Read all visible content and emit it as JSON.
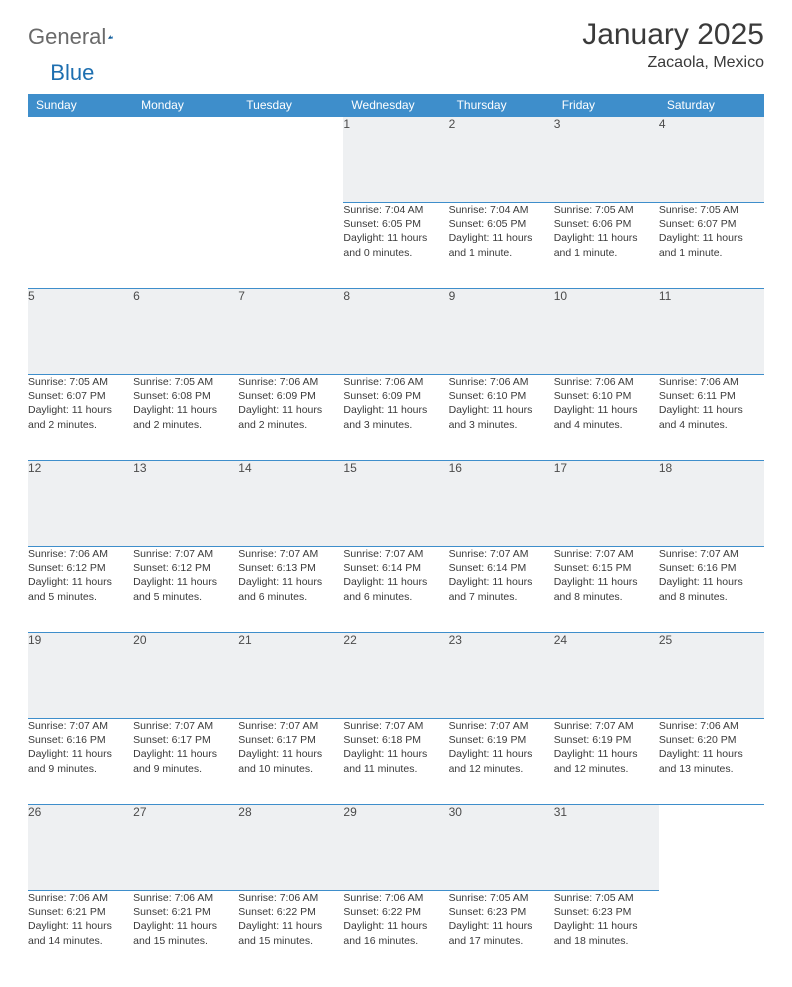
{
  "logo": {
    "text1": "General",
    "text2": "Blue"
  },
  "title": "January 2025",
  "location": "Zacaola, Mexico",
  "colors": {
    "header_bg": "#3e8ecb",
    "header_text": "#ffffff",
    "daynum_bg": "#eef0f2",
    "border": "#3e8ecb",
    "text": "#3a3a3a",
    "logo_gray": "#6a6a6a",
    "logo_blue": "#1e6fb0"
  },
  "weekdays": [
    "Sunday",
    "Monday",
    "Tuesday",
    "Wednesday",
    "Thursday",
    "Friday",
    "Saturday"
  ],
  "weeks": [
    [
      null,
      null,
      null,
      {
        "n": "1",
        "sr": "Sunrise: 7:04 AM",
        "ss": "Sunset: 6:05 PM",
        "d1": "Daylight: 11 hours",
        "d2": "and 0 minutes."
      },
      {
        "n": "2",
        "sr": "Sunrise: 7:04 AM",
        "ss": "Sunset: 6:05 PM",
        "d1": "Daylight: 11 hours",
        "d2": "and 1 minute."
      },
      {
        "n": "3",
        "sr": "Sunrise: 7:05 AM",
        "ss": "Sunset: 6:06 PM",
        "d1": "Daylight: 11 hours",
        "d2": "and 1 minute."
      },
      {
        "n": "4",
        "sr": "Sunrise: 7:05 AM",
        "ss": "Sunset: 6:07 PM",
        "d1": "Daylight: 11 hours",
        "d2": "and 1 minute."
      }
    ],
    [
      {
        "n": "5",
        "sr": "Sunrise: 7:05 AM",
        "ss": "Sunset: 6:07 PM",
        "d1": "Daylight: 11 hours",
        "d2": "and 2 minutes."
      },
      {
        "n": "6",
        "sr": "Sunrise: 7:05 AM",
        "ss": "Sunset: 6:08 PM",
        "d1": "Daylight: 11 hours",
        "d2": "and 2 minutes."
      },
      {
        "n": "7",
        "sr": "Sunrise: 7:06 AM",
        "ss": "Sunset: 6:09 PM",
        "d1": "Daylight: 11 hours",
        "d2": "and 2 minutes."
      },
      {
        "n": "8",
        "sr": "Sunrise: 7:06 AM",
        "ss": "Sunset: 6:09 PM",
        "d1": "Daylight: 11 hours",
        "d2": "and 3 minutes."
      },
      {
        "n": "9",
        "sr": "Sunrise: 7:06 AM",
        "ss": "Sunset: 6:10 PM",
        "d1": "Daylight: 11 hours",
        "d2": "and 3 minutes."
      },
      {
        "n": "10",
        "sr": "Sunrise: 7:06 AM",
        "ss": "Sunset: 6:10 PM",
        "d1": "Daylight: 11 hours",
        "d2": "and 4 minutes."
      },
      {
        "n": "11",
        "sr": "Sunrise: 7:06 AM",
        "ss": "Sunset: 6:11 PM",
        "d1": "Daylight: 11 hours",
        "d2": "and 4 minutes."
      }
    ],
    [
      {
        "n": "12",
        "sr": "Sunrise: 7:06 AM",
        "ss": "Sunset: 6:12 PM",
        "d1": "Daylight: 11 hours",
        "d2": "and 5 minutes."
      },
      {
        "n": "13",
        "sr": "Sunrise: 7:07 AM",
        "ss": "Sunset: 6:12 PM",
        "d1": "Daylight: 11 hours",
        "d2": "and 5 minutes."
      },
      {
        "n": "14",
        "sr": "Sunrise: 7:07 AM",
        "ss": "Sunset: 6:13 PM",
        "d1": "Daylight: 11 hours",
        "d2": "and 6 minutes."
      },
      {
        "n": "15",
        "sr": "Sunrise: 7:07 AM",
        "ss": "Sunset: 6:14 PM",
        "d1": "Daylight: 11 hours",
        "d2": "and 6 minutes."
      },
      {
        "n": "16",
        "sr": "Sunrise: 7:07 AM",
        "ss": "Sunset: 6:14 PM",
        "d1": "Daylight: 11 hours",
        "d2": "and 7 minutes."
      },
      {
        "n": "17",
        "sr": "Sunrise: 7:07 AM",
        "ss": "Sunset: 6:15 PM",
        "d1": "Daylight: 11 hours",
        "d2": "and 8 minutes."
      },
      {
        "n": "18",
        "sr": "Sunrise: 7:07 AM",
        "ss": "Sunset: 6:16 PM",
        "d1": "Daylight: 11 hours",
        "d2": "and 8 minutes."
      }
    ],
    [
      {
        "n": "19",
        "sr": "Sunrise: 7:07 AM",
        "ss": "Sunset: 6:16 PM",
        "d1": "Daylight: 11 hours",
        "d2": "and 9 minutes."
      },
      {
        "n": "20",
        "sr": "Sunrise: 7:07 AM",
        "ss": "Sunset: 6:17 PM",
        "d1": "Daylight: 11 hours",
        "d2": "and 9 minutes."
      },
      {
        "n": "21",
        "sr": "Sunrise: 7:07 AM",
        "ss": "Sunset: 6:17 PM",
        "d1": "Daylight: 11 hours",
        "d2": "and 10 minutes."
      },
      {
        "n": "22",
        "sr": "Sunrise: 7:07 AM",
        "ss": "Sunset: 6:18 PM",
        "d1": "Daylight: 11 hours",
        "d2": "and 11 minutes."
      },
      {
        "n": "23",
        "sr": "Sunrise: 7:07 AM",
        "ss": "Sunset: 6:19 PM",
        "d1": "Daylight: 11 hours",
        "d2": "and 12 minutes."
      },
      {
        "n": "24",
        "sr": "Sunrise: 7:07 AM",
        "ss": "Sunset: 6:19 PM",
        "d1": "Daylight: 11 hours",
        "d2": "and 12 minutes."
      },
      {
        "n": "25",
        "sr": "Sunrise: 7:06 AM",
        "ss": "Sunset: 6:20 PM",
        "d1": "Daylight: 11 hours",
        "d2": "and 13 minutes."
      }
    ],
    [
      {
        "n": "26",
        "sr": "Sunrise: 7:06 AM",
        "ss": "Sunset: 6:21 PM",
        "d1": "Daylight: 11 hours",
        "d2": "and 14 minutes."
      },
      {
        "n": "27",
        "sr": "Sunrise: 7:06 AM",
        "ss": "Sunset: 6:21 PM",
        "d1": "Daylight: 11 hours",
        "d2": "and 15 minutes."
      },
      {
        "n": "28",
        "sr": "Sunrise: 7:06 AM",
        "ss": "Sunset: 6:22 PM",
        "d1": "Daylight: 11 hours",
        "d2": "and 15 minutes."
      },
      {
        "n": "29",
        "sr": "Sunrise: 7:06 AM",
        "ss": "Sunset: 6:22 PM",
        "d1": "Daylight: 11 hours",
        "d2": "and 16 minutes."
      },
      {
        "n": "30",
        "sr": "Sunrise: 7:05 AM",
        "ss": "Sunset: 6:23 PM",
        "d1": "Daylight: 11 hours",
        "d2": "and 17 minutes."
      },
      {
        "n": "31",
        "sr": "Sunrise: 7:05 AM",
        "ss": "Sunset: 6:23 PM",
        "d1": "Daylight: 11 hours",
        "d2": "and 18 minutes."
      },
      null
    ]
  ]
}
